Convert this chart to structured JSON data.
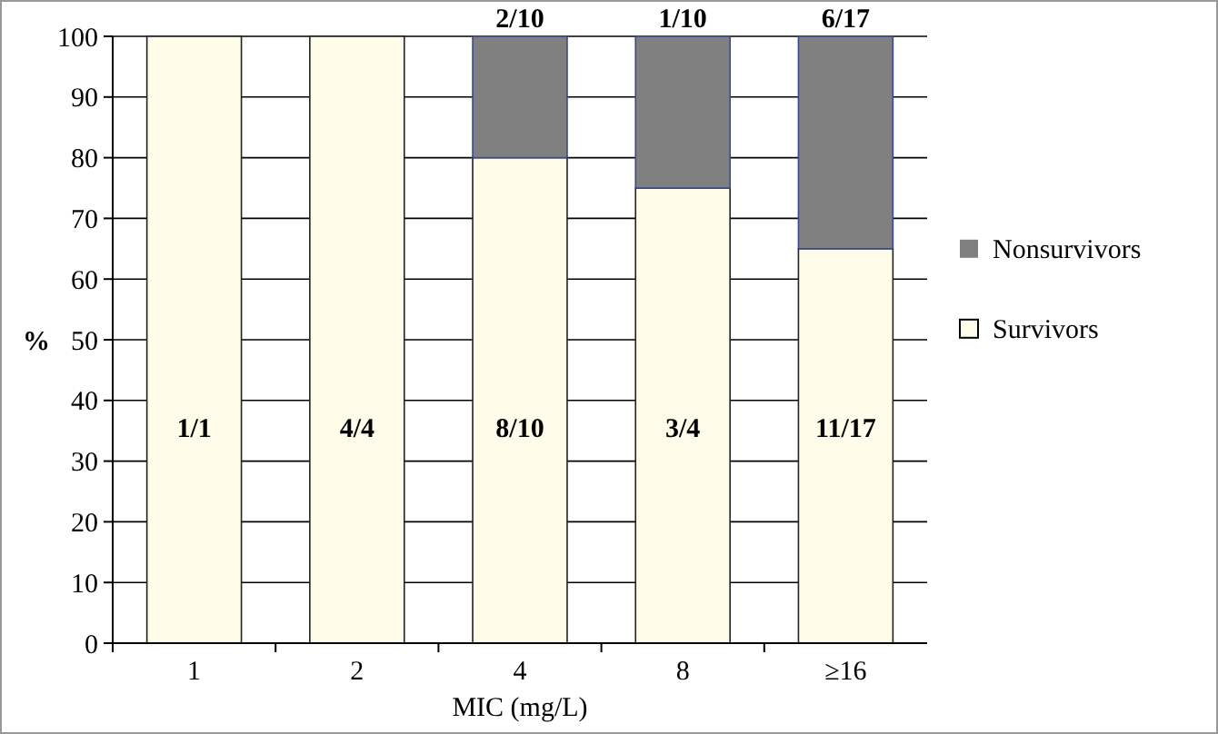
{
  "chart_data": {
    "type": "bar",
    "stacked": true,
    "categories": [
      "1",
      "2",
      "4",
      "8",
      "≥16"
    ],
    "xlabel": "MIC (mg/L)",
    "ylabel": "%",
    "ylim": [
      0,
      100
    ],
    "yticks": [
      0,
      10,
      20,
      30,
      40,
      50,
      60,
      70,
      80,
      90,
      100
    ],
    "grid": "y",
    "legend": "right",
    "series": [
      {
        "name": "Survivors",
        "color": "#fffdea",
        "values": [
          100,
          100,
          80,
          75,
          65
        ]
      },
      {
        "name": "Nonsurvivors",
        "color": "#808080",
        "values": [
          0,
          0,
          20,
          25,
          35
        ]
      }
    ],
    "annotations": [
      "1/1",
      "4/4",
      "8/10",
      "3/4",
      "11/17",
      {
        "text": "2/10",
        "x": "4",
        "y": 100
      },
      {
        "text": "1/10",
        "x": "8",
        "y": 100
      },
      {
        "text": "6/17",
        "x": "≥16",
        "y": 100
      }
    ]
  }
}
